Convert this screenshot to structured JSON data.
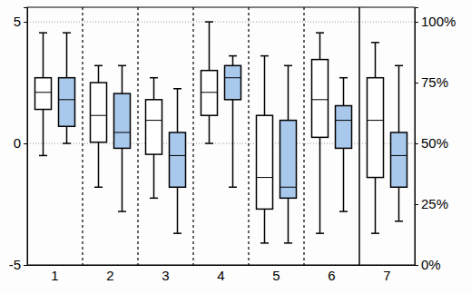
{
  "chart_data": {
    "type": "box",
    "categories": [
      "1",
      "2",
      "3",
      "4",
      "5",
      "6",
      "7"
    ],
    "ylim": [
      -5,
      5.6
    ],
    "yticks": [
      -5,
      0,
      5
    ],
    "y2lim": [
      0,
      106
    ],
    "y2ticks": [
      {
        "value": 0,
        "label": "0%"
      },
      {
        "value": 25,
        "label": "25%"
      },
      {
        "value": 50,
        "label": "50%"
      },
      {
        "value": 75,
        "label": "75%"
      },
      {
        "value": 100,
        "label": "100%"
      }
    ],
    "grid": true,
    "series": [
      {
        "color": "#ffffff",
        "values": [
          {
            "min": -0.5,
            "q1": 1.4,
            "median": 2.1,
            "q3": 2.7,
            "max": 4.55
          },
          {
            "min": -1.8,
            "q1": 0.05,
            "median": 1.15,
            "q3": 2.5,
            "max": 3.2
          },
          {
            "min": -2.25,
            "q1": -0.45,
            "median": 0.95,
            "q3": 1.8,
            "max": 2.7
          },
          {
            "min": 0,
            "q1": 1.15,
            "median": 2.1,
            "q3": 3.0,
            "max": 5.0
          },
          {
            "min": -4.1,
            "q1": -2.7,
            "median": -1.4,
            "q3": 1.15,
            "max": 3.6
          },
          {
            "min": -3.7,
            "q1": 0.25,
            "median": 1.8,
            "q3": 3.45,
            "max": 4.55
          },
          {
            "min": -3.7,
            "q1": -1.4,
            "median": 0.95,
            "q3": 2.7,
            "max": 4.15
          }
        ]
      },
      {
        "color": "#a8c8ec",
        "values": [
          {
            "min": 0,
            "q1": 0.7,
            "median": 1.8,
            "q3": 2.7,
            "max": 4.55
          },
          {
            "min": -2.8,
            "q1": -0.2,
            "median": 0.45,
            "q3": 2.05,
            "max": 3.2
          },
          {
            "min": -3.7,
            "q1": -1.8,
            "median": -0.5,
            "q3": 0.45,
            "max": 2.25
          },
          {
            "min": -1.8,
            "q1": 1.8,
            "median": 2.7,
            "q3": 3.2,
            "max": 3.6
          },
          {
            "min": -4.1,
            "q1": -2.25,
            "median": -1.8,
            "q3": 0.95,
            "max": 3.2
          },
          {
            "min": -2.8,
            "q1": -0.2,
            "median": 0.95,
            "q3": 1.55,
            "max": 2.7
          },
          {
            "min": -3.2,
            "q1": -1.8,
            "median": -0.5,
            "q3": 0.45,
            "max": 3.2
          }
        ]
      }
    ]
  }
}
